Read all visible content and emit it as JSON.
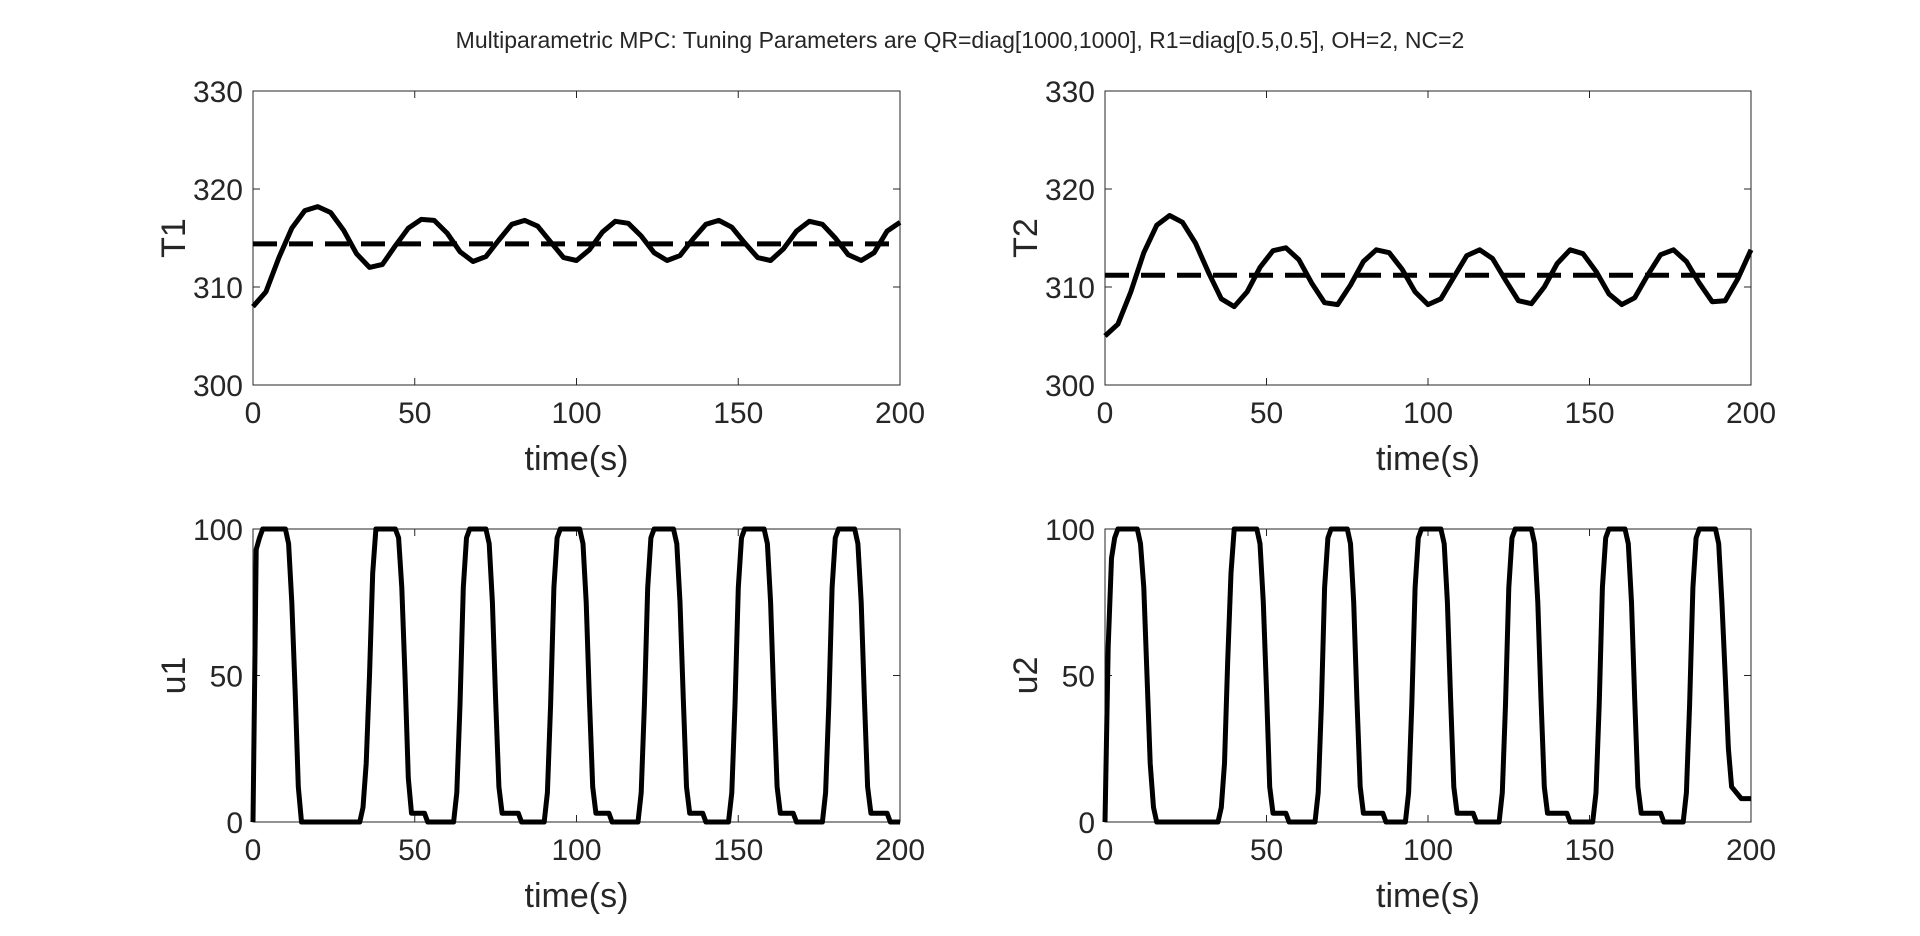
{
  "figure": {
    "title": "Multiparametric MPC: Tuning Parameters are QR=diag[1000,1000],  R1=diag[0.5,0.5],  OH=2,  NC=2"
  },
  "chart_data": [
    {
      "type": "line",
      "ylabel": "T1",
      "xlabel": "time(s)",
      "xlim": [
        0,
        200
      ],
      "ylim": [
        300,
        330
      ],
      "xticks": [
        0,
        50,
        100,
        150,
        200
      ],
      "yticks": [
        300,
        310,
        320,
        330
      ],
      "grid": false,
      "series": [
        {
          "style": "solid",
          "x": [
            0,
            4,
            8,
            12,
            16,
            20,
            24,
            28,
            32,
            36,
            40,
            44,
            48,
            52,
            56,
            60,
            64,
            68,
            72,
            76,
            80,
            84,
            88,
            92,
            96,
            100,
            104,
            108,
            112,
            116,
            120,
            124,
            128,
            132,
            136,
            140,
            144,
            148,
            152,
            156,
            160,
            164,
            168,
            172,
            176,
            180,
            184,
            188,
            192,
            196,
            200
          ],
          "values": [
            308.0,
            309.5,
            313.0,
            316.0,
            317.8,
            318.2,
            317.6,
            315.8,
            313.4,
            312.0,
            312.3,
            314.2,
            316.0,
            316.9,
            316.8,
            315.5,
            313.6,
            312.6,
            313.1,
            314.8,
            316.4,
            316.8,
            316.2,
            314.6,
            313.0,
            312.7,
            313.8,
            315.6,
            316.7,
            316.5,
            315.2,
            313.5,
            312.7,
            313.2,
            314.9,
            316.4,
            316.8,
            316.1,
            314.5,
            313.0,
            312.7,
            313.9,
            315.7,
            316.7,
            316.4,
            315.0,
            313.3,
            312.7,
            313.5,
            315.7,
            316.6
          ]
        },
        {
          "style": "dashed",
          "x": [
            0,
            200
          ],
          "values": [
            314.4,
            314.4
          ]
        }
      ]
    },
    {
      "type": "line",
      "ylabel": "T2",
      "xlabel": "time(s)",
      "xlim": [
        0,
        200
      ],
      "ylim": [
        300,
        330
      ],
      "xticks": [
        0,
        50,
        100,
        150,
        200
      ],
      "yticks": [
        300,
        310,
        320,
        330
      ],
      "grid": false,
      "series": [
        {
          "style": "solid",
          "x": [
            0,
            4,
            8,
            12,
            16,
            20,
            24,
            28,
            32,
            36,
            40,
            44,
            48,
            52,
            56,
            60,
            64,
            68,
            72,
            76,
            80,
            84,
            88,
            92,
            96,
            100,
            104,
            108,
            112,
            116,
            120,
            124,
            128,
            132,
            136,
            140,
            144,
            148,
            152,
            156,
            160,
            164,
            168,
            172,
            176,
            180,
            184,
            188,
            192,
            196,
            200
          ],
          "values": [
            305.0,
            306.2,
            309.5,
            313.5,
            316.3,
            317.3,
            316.6,
            314.5,
            311.5,
            308.8,
            308.0,
            309.5,
            312.0,
            313.7,
            314.0,
            312.8,
            310.4,
            308.4,
            308.2,
            310.2,
            312.6,
            313.8,
            313.5,
            311.8,
            309.5,
            308.2,
            308.8,
            311.0,
            313.2,
            313.8,
            312.9,
            310.7,
            308.6,
            308.3,
            310.0,
            312.4,
            313.8,
            313.4,
            311.6,
            309.3,
            308.2,
            308.9,
            311.2,
            313.3,
            313.8,
            312.6,
            310.4,
            308.5,
            308.6,
            310.9,
            313.8
          ]
        },
        {
          "style": "dashed",
          "x": [
            0,
            200
          ],
          "values": [
            311.2,
            311.2
          ]
        }
      ]
    },
    {
      "type": "line",
      "ylabel": "u1",
      "xlabel": "time(s)",
      "xlim": [
        0,
        200
      ],
      "ylim": [
        0,
        100
      ],
      "xticks": [
        0,
        50,
        100,
        150,
        200
      ],
      "yticks": [
        0,
        50,
        100
      ],
      "grid": false,
      "series": [
        {
          "style": "solid",
          "x": [
            0,
            1,
            2,
            3,
            10,
            11,
            12,
            13,
            14,
            15,
            33,
            34,
            35,
            36,
            37,
            38,
            44,
            45,
            46,
            47,
            48,
            49,
            53,
            54,
            62,
            63,
            64,
            65,
            66,
            67,
            72,
            73,
            74,
            75,
            76,
            77,
            82,
            83,
            90,
            91,
            92,
            93,
            94,
            95,
            101,
            102,
            103,
            104,
            105,
            106,
            110,
            111,
            119,
            120,
            121,
            122,
            123,
            124,
            130,
            131,
            132,
            133,
            134,
            135,
            139,
            140,
            147,
            148,
            149,
            150,
            151,
            152,
            158,
            159,
            160,
            161,
            162,
            163,
            167,
            168,
            176,
            177,
            178,
            179,
            180,
            181,
            186,
            187,
            188,
            189,
            190,
            191,
            196,
            197,
            200
          ],
          "values": [
            0,
            93,
            97,
            100,
            100,
            95,
            75,
            45,
            12,
            0,
            0,
            5,
            20,
            50,
            85,
            100,
            100,
            97,
            80,
            50,
            15,
            3,
            3,
            0,
            0,
            10,
            40,
            80,
            97,
            100,
            100,
            95,
            75,
            42,
            12,
            3,
            3,
            0,
            0,
            10,
            40,
            80,
            97,
            100,
            100,
            95,
            75,
            42,
            12,
            3,
            3,
            0,
            0,
            10,
            40,
            80,
            97,
            100,
            100,
            95,
            75,
            42,
            12,
            3,
            3,
            0,
            0,
            10,
            40,
            80,
            97,
            100,
            100,
            95,
            75,
            42,
            12,
            3,
            3,
            0,
            0,
            10,
            40,
            80,
            97,
            100,
            100,
            95,
            75,
            42,
            12,
            3,
            3,
            0,
            0
          ]
        }
      ]
    },
    {
      "type": "line",
      "ylabel": "u2",
      "xlabel": "time(s)",
      "xlim": [
        0,
        200
      ],
      "ylim": [
        0,
        100
      ],
      "xticks": [
        0,
        50,
        100,
        150,
        200
      ],
      "yticks": [
        0,
        50,
        100
      ],
      "grid": false,
      "series": [
        {
          "style": "solid",
          "x": [
            0,
            1,
            2,
            3,
            4,
            10,
            11,
            12,
            13,
            14,
            15,
            16,
            35,
            36,
            37,
            38,
            39,
            40,
            47,
            48,
            49,
            50,
            51,
            52,
            56,
            57,
            65,
            66,
            67,
            68,
            69,
            70,
            75,
            76,
            77,
            78,
            79,
            80,
            86,
            87,
            93,
            94,
            95,
            96,
            97,
            98,
            104,
            105,
            106,
            107,
            108,
            109,
            114,
            115,
            122,
            123,
            124,
            125,
            126,
            127,
            132,
            133,
            134,
            135,
            136,
            137,
            143,
            144,
            151,
            152,
            153,
            154,
            155,
            156,
            161,
            162,
            163,
            164,
            165,
            166,
            172,
            173,
            179,
            180,
            181,
            182,
            183,
            184,
            189,
            190,
            191,
            192,
            193,
            194,
            197,
            200
          ],
          "values": [
            0,
            60,
            90,
            97,
            100,
            100,
            95,
            80,
            50,
            20,
            5,
            0,
            0,
            5,
            20,
            55,
            85,
            100,
            100,
            95,
            75,
            45,
            12,
            3,
            3,
            0,
            0,
            10,
            40,
            80,
            97,
            100,
            100,
            95,
            75,
            42,
            12,
            3,
            3,
            0,
            0,
            10,
            40,
            80,
            97,
            100,
            100,
            95,
            75,
            42,
            12,
            3,
            3,
            0,
            0,
            10,
            40,
            80,
            97,
            100,
            100,
            95,
            75,
            42,
            12,
            3,
            3,
            0,
            0,
            10,
            40,
            80,
            97,
            100,
            100,
            95,
            75,
            42,
            12,
            3,
            3,
            0,
            0,
            10,
            40,
            80,
            97,
            100,
            100,
            95,
            75,
            50,
            25,
            12,
            8,
            8
          ]
        }
      ]
    }
  ]
}
